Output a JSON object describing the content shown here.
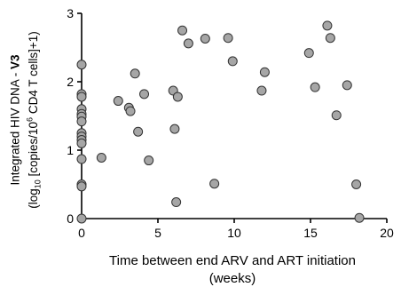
{
  "chart_data": {
    "type": "scatter",
    "xlabel_line1": "Time between end ARV and ART initiation",
    "xlabel_line2": "(weeks)",
    "ylabel": {
      "line1_prefix": "Integrated HIV DNA - ",
      "line1_bold": "V3",
      "line2_a": "(log",
      "line2_sub": "10",
      "line2_b": " [copies/10",
      "line2_sup": "6",
      "line2_c": " CD4 T cells]+1)"
    },
    "xlim": [
      0,
      20
    ],
    "ylim": [
      0,
      3
    ],
    "xticks": [
      0,
      5,
      10,
      15,
      20
    ],
    "yticks": [
      0,
      1,
      2,
      3
    ],
    "marker_fill": "#a6a6a6",
    "marker_edge": "#333333",
    "points": [
      [
        0.0,
        2.25
      ],
      [
        0.0,
        1.82
      ],
      [
        0.0,
        1.78
      ],
      [
        0.0,
        1.6
      ],
      [
        0.0,
        1.53
      ],
      [
        0.0,
        1.49
      ],
      [
        0.0,
        1.42
      ],
      [
        0.0,
        1.25
      ],
      [
        0.0,
        1.2
      ],
      [
        0.0,
        1.15
      ],
      [
        0.0,
        1.1
      ],
      [
        0.0,
        0.87
      ],
      [
        0.0,
        0.5
      ],
      [
        0.0,
        0.47
      ],
      [
        0.0,
        0.0
      ],
      [
        1.3,
        0.89
      ],
      [
        2.4,
        1.72
      ],
      [
        3.1,
        1.62
      ],
      [
        3.2,
        1.57
      ],
      [
        3.5,
        2.12
      ],
      [
        3.7,
        1.27
      ],
      [
        4.1,
        1.82
      ],
      [
        4.4,
        0.85
      ],
      [
        6.0,
        1.87
      ],
      [
        6.1,
        1.31
      ],
      [
        6.2,
        0.24
      ],
      [
        6.3,
        1.78
      ],
      [
        6.6,
        2.75
      ],
      [
        7.0,
        2.56
      ],
      [
        8.1,
        2.63
      ],
      [
        8.7,
        0.51
      ],
      [
        9.6,
        2.64
      ],
      [
        9.9,
        2.3
      ],
      [
        11.8,
        1.87
      ],
      [
        12.0,
        2.14
      ],
      [
        14.9,
        2.42
      ],
      [
        15.3,
        1.92
      ],
      [
        16.1,
        2.82
      ],
      [
        16.3,
        2.64
      ],
      [
        16.7,
        1.51
      ],
      [
        17.4,
        1.95
      ],
      [
        18.0,
        0.5
      ],
      [
        18.2,
        0.01
      ]
    ]
  }
}
